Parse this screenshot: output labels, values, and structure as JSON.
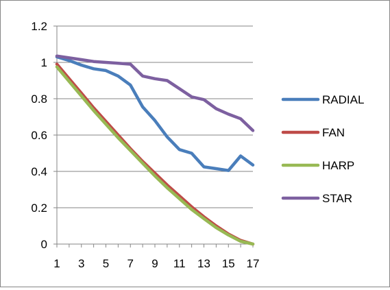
{
  "chart_data": {
    "type": "line",
    "title": "",
    "xlabel": "",
    "ylabel": "",
    "x": [
      1,
      2,
      3,
      4,
      5,
      6,
      7,
      8,
      9,
      10,
      11,
      12,
      13,
      14,
      15,
      16,
      17
    ],
    "x_tick_labels": [
      "1",
      "3",
      "5",
      "7",
      "9",
      "11",
      "13",
      "15",
      "17"
    ],
    "y_tick_labels": [
      "0",
      "0.2",
      "0.4",
      "0.6",
      "0.8",
      "1",
      "1.2"
    ],
    "ylim": [
      0,
      1.2
    ],
    "grid": "horizontal",
    "legend_position": "right",
    "series": [
      {
        "name": "RADIAL",
        "color": "#4a7ebb",
        "values": [
          1.03,
          1.01,
          0.985,
          0.965,
          0.955,
          0.925,
          0.875,
          0.755,
          0.68,
          0.59,
          0.52,
          0.5,
          0.425,
          0.415,
          0.405,
          0.485,
          0.435
        ]
      },
      {
        "name": "FAN",
        "color": "#be4b48",
        "values": [
          0.99,
          0.91,
          0.83,
          0.75,
          0.675,
          0.6,
          0.525,
          0.455,
          0.39,
          0.325,
          0.265,
          0.205,
          0.15,
          0.1,
          0.055,
          0.02,
          0.0
        ]
      },
      {
        "name": "HARP",
        "color": "#98b954",
        "values": [
          0.975,
          0.895,
          0.815,
          0.735,
          0.66,
          0.585,
          0.515,
          0.445,
          0.375,
          0.31,
          0.25,
          0.19,
          0.14,
          0.09,
          0.05,
          0.015,
          0.0
        ]
      },
      {
        "name": "STAR",
        "color": "#7d60a0",
        "values": [
          1.035,
          1.025,
          1.015,
          1.005,
          1.0,
          0.995,
          0.99,
          0.925,
          0.91,
          0.9,
          0.855,
          0.81,
          0.795,
          0.745,
          0.715,
          0.69,
          0.625
        ]
      }
    ]
  }
}
